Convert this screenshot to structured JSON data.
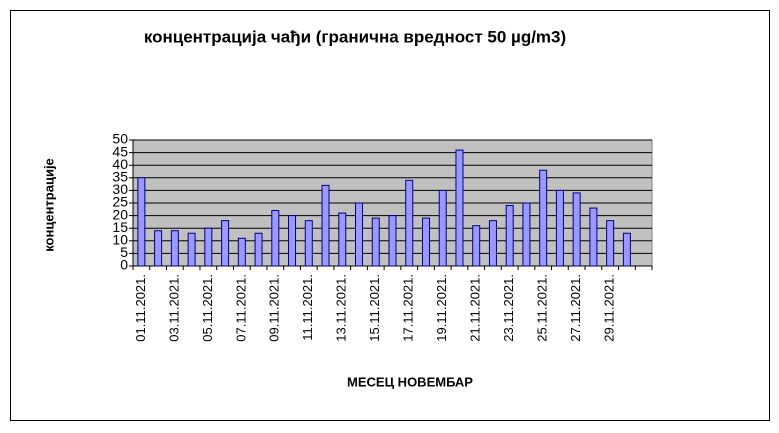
{
  "chart_data": {
    "type": "bar",
    "title": "концентрација чађи (гранична вредност 50 µg/m3)",
    "x_label": "МЕСЕЦ  НОВЕМБАР",
    "y_label": "концентрације",
    "categories": [
      "01.11.2021.",
      null,
      "03.11.2021.",
      null,
      "05.11.2021.",
      null,
      "07.11.2021.",
      null,
      "09.11.2021.",
      null,
      "11.11.2021.",
      null,
      "13.11.2021.",
      null,
      "15.11.2021.",
      null,
      "17.11.2021.",
      null,
      "19.11.2021.",
      null,
      "21.11.2021.",
      null,
      "23.11.2021.",
      null,
      "25.11.2021.",
      null,
      "27.11.2021.",
      null,
      "29.11.2021.",
      null,
      null
    ],
    "values": [
      35,
      14,
      14,
      13,
      15,
      18,
      11,
      13,
      22,
      20,
      18,
      32,
      21,
      25,
      19,
      20,
      34,
      19,
      30,
      46,
      16,
      18,
      24,
      25,
      38,
      30,
      29,
      23,
      18,
      13,
      null
    ],
    "color": "#9999ff",
    "ylim": [
      0,
      50
    ],
    "yticks": [
      0,
      5,
      10,
      15,
      20,
      25,
      30,
      35,
      40,
      45,
      50
    ],
    "grid": true
  }
}
